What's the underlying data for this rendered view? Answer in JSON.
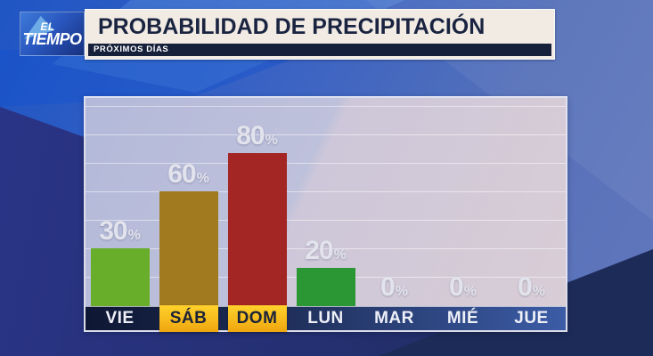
{
  "header": {
    "logo_line1": "EL",
    "logo_line2": "TIEMPO",
    "title": "PROBABILIDAD DE PRECIPITACIÓN",
    "subtitle": "PRÓXIMOS DÍAS"
  },
  "chart_data": {
    "type": "bar",
    "title": "PROBABILIDAD DE PRECIPITACIÓN",
    "subtitle": "PRÓXIMOS DÍAS",
    "categories": [
      "VIE",
      "SÁB",
      "DOM",
      "LUN",
      "MAR",
      "MIÉ",
      "JUE"
    ],
    "values": [
      30,
      60,
      80,
      20,
      0,
      0,
      0
    ],
    "unit": "%",
    "ylim": [
      0,
      100
    ],
    "grid": true,
    "legend": "none",
    "bar_colors": [
      "#68ae2b",
      "#a1791f",
      "#a32624",
      "#2b9634",
      null,
      null,
      null
    ],
    "highlighted_categories": [
      "SÁB",
      "DOM"
    ],
    "colors": {
      "value_label": "#e2e3ec",
      "axis_text": "#eef0f8",
      "highlight_chip": "#ffc81e",
      "highlight_text": "#1a2238"
    }
  }
}
